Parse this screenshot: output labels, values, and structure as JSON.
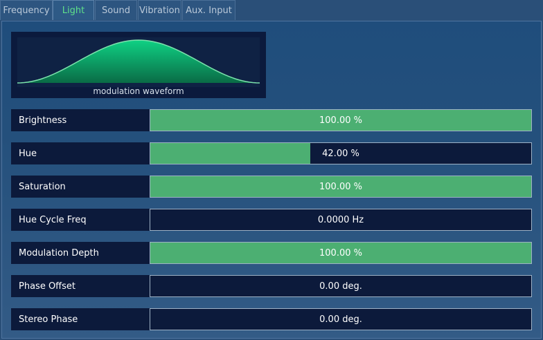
{
  "tabs": [
    {
      "label": "Frequency",
      "active": false
    },
    {
      "label": "Light",
      "active": true
    },
    {
      "label": "Sound",
      "active": false
    },
    {
      "label": "Vibration",
      "active": false
    },
    {
      "label": "Aux. Input",
      "active": false
    }
  ],
  "waveform": {
    "caption": "modulation waveform",
    "shape": "bell-curve",
    "colors": {
      "fill_top": "#0fd184",
      "fill_bottom": "#0a6b46",
      "stroke": "#7de3ad"
    }
  },
  "parameters": [
    {
      "label": "Brightness",
      "value": "100.00 %",
      "fill_fraction": 1.0
    },
    {
      "label": "Hue",
      "value": "42.00 %",
      "fill_fraction": 0.42
    },
    {
      "label": "Saturation",
      "value": "100.00 %",
      "fill_fraction": 1.0
    },
    {
      "label": "Hue Cycle Freq",
      "value": "0.0000 Hz",
      "fill_fraction": 0.0
    },
    {
      "label": "Modulation Depth",
      "value": "100.00 %",
      "fill_fraction": 1.0
    },
    {
      "label": "Phase Offset",
      "value": "0.00 deg.",
      "fill_fraction": 0.0
    },
    {
      "label": "Stereo Phase",
      "value": "0.00 deg.",
      "fill_fraction": 0.0
    }
  ],
  "colors": {
    "accent_green": "#4caf72",
    "active_tab_text": "#5fe08a",
    "panel_dark": "#0c1a3b"
  }
}
